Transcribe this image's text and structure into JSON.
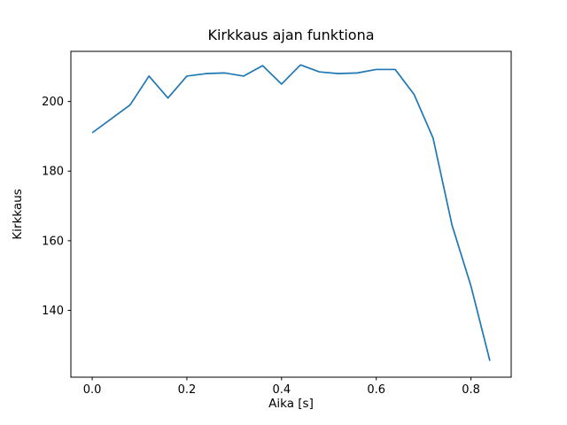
{
  "chart_data": {
    "type": "line",
    "title": "Kirkkaus ajan funktiona",
    "xlabel": "Aika [s]",
    "ylabel": "Kirkkaus",
    "x": [
      0.0,
      0.04,
      0.08,
      0.12,
      0.16,
      0.2,
      0.24,
      0.28,
      0.32,
      0.36,
      0.4,
      0.44,
      0.48,
      0.52,
      0.56,
      0.6,
      0.64,
      0.68,
      0.72,
      0.76,
      0.8,
      0.84
    ],
    "series": [
      {
        "name": "kirkkaus",
        "color": "#1f77b4",
        "values": [
          191,
          195,
          199,
          207.3,
          201,
          207.3,
          208,
          208.2,
          207.3,
          210.3,
          205,
          210.5,
          208.5,
          208,
          208.2,
          209.2,
          209.2,
          202,
          189.5,
          164.5,
          147,
          125.5
        ]
      }
    ],
    "x_ticks": [
      "0.0",
      "0.2",
      "0.4",
      "0.6",
      "0.8"
    ],
    "x_tick_values": [
      0.0,
      0.2,
      0.4,
      0.6,
      0.8
    ],
    "y_ticks": [
      "140",
      "160",
      "180",
      "200"
    ],
    "y_tick_values": [
      140,
      160,
      180,
      200
    ],
    "xlim": [
      -0.045,
      0.885
    ],
    "ylim": [
      120.8,
      214.4
    ],
    "grid": false,
    "legend": null,
    "background_color": "#ffffff",
    "frame_color": "#000000"
  }
}
